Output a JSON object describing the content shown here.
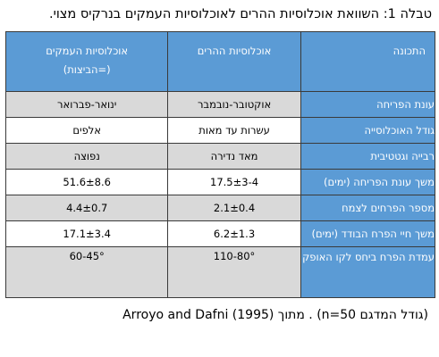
{
  "title": "טבלה 1: השוואת אוכלוסיות ההרים לאוכלוסיות העמקים בנרקיס מצוי.",
  "colors": {
    "header_blue": "#5b9bd5",
    "row_gray": "#d9d9d9",
    "row_white": "#ffffff"
  },
  "table": {
    "headers": {
      "feature": "התכונה",
      "mountain": "אוכלוסיות ההרים",
      "valley_line1": "אוכלוסיות העמקים",
      "valley_line2": "(=הביצות)"
    },
    "rows": [
      {
        "feature": "עונת הפריחה",
        "mountain": "אוקטובר-נובמבר",
        "valley": "ינואר-פברואר"
      },
      {
        "feature": "גודל האוכלוסייה",
        "mountain": "עשרות עד מאות",
        "valley": "אלפים"
      },
      {
        "feature": "רבייה וגטטיבית",
        "mountain": "מאד נדירה",
        "valley": "נפוצה"
      },
      {
        "feature": "משך עונת הפריחה (ימים)",
        "mountain": "17.5±3-4",
        "valley": "51.6±8.6"
      },
      {
        "feature": "מספר הפרחים לצמח",
        "mountain": "2.1±0.4",
        "valley": "4.4±0.7"
      },
      {
        "feature": "משך חיי הפרח הבודד (ימים)",
        "mountain": "6.2±1.3",
        "valley": "17.1±3.4"
      },
      {
        "feature": "עמדת הפרח ביחס לקו האופק",
        "mountain": "110-80°",
        "valley": "60-45°"
      }
    ]
  },
  "source": "(גודל המדגם n=50) . מתוך Arroyo and Dafni (1995)"
}
